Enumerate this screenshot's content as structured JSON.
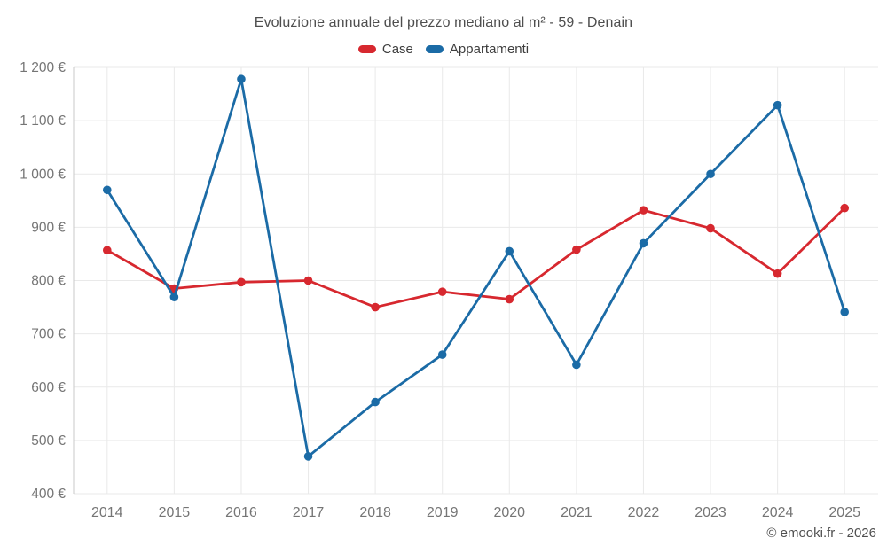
{
  "header": {
    "title": "Evoluzione annuale del prezzo mediano al m² - 59 - Denain"
  },
  "legend": {
    "items": [
      {
        "label": "Case",
        "color": "#d7282f"
      },
      {
        "label": "Appartamenti",
        "color": "#1b6ba6"
      }
    ]
  },
  "footer": {
    "copyright": "© emooki.fr - 2026"
  },
  "chart_data": {
    "type": "line",
    "title": "Evoluzione annuale del prezzo mediano al m² - 59 - Denain",
    "categories": [
      "2014",
      "2015",
      "2016",
      "2017",
      "2018",
      "2019",
      "2020",
      "2021",
      "2022",
      "2023",
      "2024",
      "2025"
    ],
    "series": [
      {
        "name": "Case",
        "color": "#d7282f",
        "values": [
          857,
          785,
          797,
          800,
          750,
          779,
          765,
          858,
          932,
          898,
          813,
          936
        ]
      },
      {
        "name": "Appartamenti",
        "color": "#1b6ba6",
        "values": [
          970,
          769,
          1178,
          470,
          572,
          661,
          855,
          642,
          870,
          1000,
          1129,
          741
        ]
      }
    ],
    "xlabel": "",
    "ylabel": "",
    "ylim": [
      400,
      1200
    ],
    "y_ticks": [
      {
        "value": 400,
        "label": "400 €"
      },
      {
        "value": 500,
        "label": "500 €"
      },
      {
        "value": 600,
        "label": "600 €"
      },
      {
        "value": 700,
        "label": "700 €"
      },
      {
        "value": 800,
        "label": "800 €"
      },
      {
        "value": 900,
        "label": "900 €"
      },
      {
        "value": 1000,
        "label": "1 000 €"
      },
      {
        "value": 1100,
        "label": "1 100 €"
      },
      {
        "value": 1200,
        "label": "1 200 €"
      }
    ],
    "grid": true,
    "legend_position": "top"
  },
  "style": {
    "grid_color": "#e9e9e9",
    "axis_line_color": "#c9c9c9",
    "tick_label_color": "#757575"
  }
}
